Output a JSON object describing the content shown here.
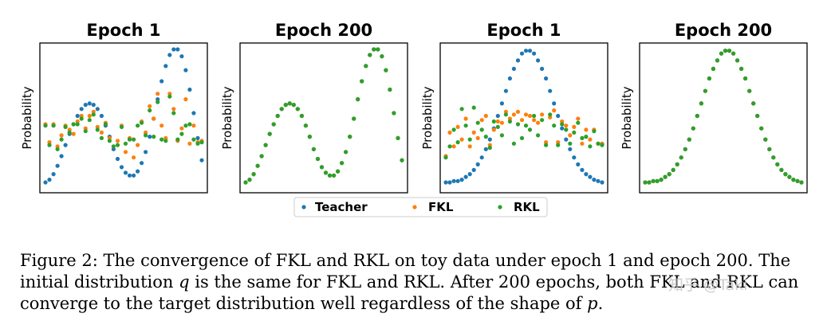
{
  "chart_data": [
    {
      "type": "scatter",
      "title": "Epoch 1",
      "ylabel": "Probability",
      "xlim": [
        0,
        39
      ],
      "ylim": [
        0.0,
        1.0
      ],
      "series": [
        {
          "name": "Teacher",
          "color": "#1f77b4",
          "x": [
            0,
            1,
            2,
            3,
            4,
            5,
            6,
            7,
            8,
            9,
            10,
            11,
            12,
            13,
            14,
            15,
            16,
            17,
            18,
            19,
            20,
            21,
            22,
            23,
            24,
            25,
            26,
            27,
            28,
            29,
            30,
            31,
            32,
            33,
            34,
            35,
            36,
            37,
            38,
            39
          ],
          "y": [
            0.04,
            0.06,
            0.1,
            0.16,
            0.23,
            0.31,
            0.39,
            0.46,
            0.52,
            0.57,
            0.6,
            0.61,
            0.6,
            0.57,
            0.52,
            0.45,
            0.37,
            0.28,
            0.21,
            0.15,
            0.11,
            0.09,
            0.09,
            0.12,
            0.18,
            0.26,
            0.37,
            0.5,
            0.64,
            0.77,
            0.88,
            0.96,
            1.0,
            1.0,
            0.95,
            0.85,
            0.71,
            0.54,
            0.36,
            0.2
          ]
        },
        {
          "name": "FKL",
          "color": "#ff7f0e",
          "x": [
            0,
            1,
            2,
            3,
            4,
            5,
            6,
            7,
            8,
            9,
            10,
            11,
            12,
            13,
            14,
            15,
            16,
            17,
            18,
            19,
            20,
            21,
            22,
            23,
            24,
            25,
            26,
            27,
            28,
            29,
            30,
            31,
            32,
            33,
            34,
            35,
            36,
            37,
            38,
            39
          ],
          "y": [
            0.46,
            0.33,
            0.46,
            0.3,
            0.38,
            0.45,
            0.42,
            0.39,
            0.48,
            0.52,
            0.43,
            0.52,
            0.55,
            0.44,
            0.4,
            0.47,
            0.36,
            0.3,
            0.34,
            0.45,
            0.26,
            0.36,
            0.22,
            0.31,
            0.48,
            0.4,
            0.59,
            0.5,
            0.68,
            0.45,
            0.36,
            0.68,
            0.57,
            0.34,
            0.43,
            0.64,
            0.32,
            0.45,
            0.33,
            0.34
          ]
        },
        {
          "name": "RKL",
          "color": "#2ca02c",
          "x": [
            0,
            1,
            2,
            3,
            4,
            5,
            6,
            7,
            8,
            9,
            10,
            11,
            12,
            13,
            14,
            15,
            16,
            17,
            18,
            19,
            20,
            21,
            22,
            23,
            24,
            25,
            26,
            27,
            28,
            29,
            30,
            31,
            32,
            33,
            34,
            35,
            36,
            37,
            38,
            39
          ],
          "y": [
            0.45,
            0.31,
            0.45,
            0.28,
            0.35,
            0.44,
            0.4,
            0.46,
            0.46,
            0.5,
            0.41,
            0.49,
            0.53,
            0.42,
            0.36,
            0.46,
            0.34,
            0.3,
            0.31,
            0.44,
            0.32,
            0.35,
            0.35,
            0.45,
            0.47,
            0.38,
            0.56,
            0.37,
            0.62,
            0.35,
            0.34,
            0.66,
            0.54,
            0.35,
            0.39,
            0.45,
            0.46,
            0.35,
            0.32,
            0.33
          ]
        }
      ]
    },
    {
      "type": "scatter",
      "title": "Epoch 200",
      "ylabel": "Probability",
      "xlim": [
        0,
        39
      ],
      "ylim": [
        0.0,
        1.0
      ],
      "series": [
        {
          "name": "Teacher",
          "color": "#1f77b4",
          "x": [
            0,
            1,
            2,
            3,
            4,
            5,
            6,
            7,
            8,
            9,
            10,
            11,
            12,
            13,
            14,
            15,
            16,
            17,
            18,
            19,
            20,
            21,
            22,
            23,
            24,
            25,
            26,
            27,
            28,
            29,
            30,
            31,
            32,
            33,
            34,
            35,
            36,
            37,
            38,
            39
          ],
          "y": [
            0.04,
            0.06,
            0.1,
            0.16,
            0.23,
            0.31,
            0.39,
            0.46,
            0.52,
            0.57,
            0.6,
            0.61,
            0.6,
            0.57,
            0.52,
            0.45,
            0.37,
            0.28,
            0.21,
            0.15,
            0.11,
            0.09,
            0.09,
            0.12,
            0.18,
            0.26,
            0.37,
            0.5,
            0.64,
            0.77,
            0.88,
            0.96,
            1.0,
            1.0,
            0.95,
            0.85,
            0.71,
            0.54,
            0.36,
            0.2
          ]
        },
        {
          "name": "FKL",
          "color": "#ff7f0e",
          "x": [
            0,
            1,
            2,
            3,
            4,
            5,
            6,
            7,
            8,
            9,
            10,
            11,
            12,
            13,
            14,
            15,
            16,
            17,
            18,
            19,
            20,
            21,
            22,
            23,
            24,
            25,
            26,
            27,
            28,
            29,
            30,
            31,
            32,
            33,
            34,
            35,
            36,
            37,
            38,
            39
          ],
          "y": [
            0.04,
            0.06,
            0.1,
            0.16,
            0.23,
            0.31,
            0.39,
            0.46,
            0.52,
            0.57,
            0.6,
            0.61,
            0.6,
            0.57,
            0.52,
            0.45,
            0.37,
            0.28,
            0.21,
            0.15,
            0.11,
            0.09,
            0.09,
            0.12,
            0.18,
            0.26,
            0.37,
            0.5,
            0.64,
            0.77,
            0.88,
            0.96,
            1.0,
            1.0,
            0.95,
            0.85,
            0.71,
            0.54,
            0.36,
            0.2
          ]
        },
        {
          "name": "RKL",
          "color": "#2ca02c",
          "x": [
            0,
            1,
            2,
            3,
            4,
            5,
            6,
            7,
            8,
            9,
            10,
            11,
            12,
            13,
            14,
            15,
            16,
            17,
            18,
            19,
            20,
            21,
            22,
            23,
            24,
            25,
            26,
            27,
            28,
            29,
            30,
            31,
            32,
            33,
            34,
            35,
            36,
            37,
            38,
            39
          ],
          "y": [
            0.04,
            0.06,
            0.1,
            0.16,
            0.23,
            0.31,
            0.39,
            0.46,
            0.52,
            0.57,
            0.6,
            0.61,
            0.6,
            0.57,
            0.52,
            0.45,
            0.37,
            0.28,
            0.21,
            0.15,
            0.11,
            0.09,
            0.09,
            0.12,
            0.18,
            0.26,
            0.37,
            0.5,
            0.64,
            0.77,
            0.88,
            0.96,
            1.0,
            1.0,
            0.95,
            0.85,
            0.71,
            0.54,
            0.36,
            0.2
          ]
        }
      ]
    },
    {
      "type": "scatter",
      "title": "Epoch 1",
      "ylabel": "Probability",
      "xlim": [
        0,
        39
      ],
      "ylim": [
        0.0,
        1.0
      ],
      "series": [
        {
          "name": "Teacher",
          "color": "#1f77b4",
          "x": [
            0,
            1,
            2,
            3,
            4,
            5,
            6,
            7,
            8,
            9,
            10,
            11,
            12,
            13,
            14,
            15,
            16,
            17,
            18,
            19,
            20,
            21,
            22,
            23,
            24,
            25,
            26,
            27,
            28,
            29,
            30,
            31,
            32,
            33,
            34,
            35,
            36,
            37,
            38,
            39
          ],
          "y": [
            0.04,
            0.04,
            0.05,
            0.05,
            0.06,
            0.08,
            0.1,
            0.13,
            0.17,
            0.22,
            0.28,
            0.35,
            0.43,
            0.52,
            0.61,
            0.7,
            0.79,
            0.86,
            0.92,
            0.97,
            0.99,
            0.99,
            0.97,
            0.92,
            0.86,
            0.79,
            0.7,
            0.61,
            0.52,
            0.43,
            0.35,
            0.28,
            0.22,
            0.17,
            0.13,
            0.1,
            0.08,
            0.06,
            0.05,
            0.04
          ]
        },
        {
          "name": "FKL",
          "color": "#ff7f0e",
          "x": [
            0,
            1,
            2,
            3,
            4,
            5,
            6,
            7,
            8,
            9,
            10,
            11,
            12,
            13,
            14,
            15,
            16,
            17,
            18,
            19,
            20,
            21,
            22,
            23,
            24,
            25,
            26,
            27,
            28,
            29,
            30,
            31,
            32,
            33,
            34,
            35,
            36,
            37,
            38,
            39
          ],
          "y": [
            0.23,
            0.4,
            0.3,
            0.44,
            0.35,
            0.5,
            0.3,
            0.4,
            0.36,
            0.49,
            0.52,
            0.31,
            0.42,
            0.48,
            0.47,
            0.55,
            0.5,
            0.53,
            0.55,
            0.49,
            0.53,
            0.52,
            0.49,
            0.47,
            0.53,
            0.33,
            0.51,
            0.56,
            0.33,
            0.48,
            0.45,
            0.38,
            0.44,
            0.5,
            0.32,
            0.42,
            0.35,
            0.42,
            0.32,
            0.32
          ]
        },
        {
          "name": "RKL",
          "color": "#2ca02c",
          "x": [
            0,
            1,
            2,
            3,
            4,
            5,
            6,
            7,
            8,
            9,
            10,
            11,
            12,
            13,
            14,
            15,
            16,
            17,
            18,
            19,
            20,
            21,
            22,
            23,
            24,
            25,
            26,
            27,
            28,
            29,
            30,
            31,
            32,
            33,
            34,
            35,
            36,
            37,
            38,
            39
          ],
          "y": [
            0.22,
            0.3,
            0.42,
            0.33,
            0.57,
            0.45,
            0.35,
            0.58,
            0.47,
            0.42,
            0.37,
            0.29,
            0.48,
            0.44,
            0.38,
            0.53,
            0.48,
            0.32,
            0.46,
            0.36,
            0.45,
            0.42,
            0.52,
            0.38,
            0.49,
            0.31,
            0.53,
            0.45,
            0.31,
            0.46,
            0.42,
            0.32,
            0.4,
            0.47,
            0.36,
            0.37,
            0.3,
            0.41,
            0.32,
            0.31
          ]
        }
      ]
    },
    {
      "type": "scatter",
      "title": "Epoch 200",
      "ylabel": "Probability",
      "xlim": [
        0,
        39
      ],
      "ylim": [
        0.0,
        1.0
      ],
      "series": [
        {
          "name": "Teacher",
          "color": "#1f77b4",
          "x": [
            0,
            1,
            2,
            3,
            4,
            5,
            6,
            7,
            8,
            9,
            10,
            11,
            12,
            13,
            14,
            15,
            16,
            17,
            18,
            19,
            20,
            21,
            22,
            23,
            24,
            25,
            26,
            27,
            28,
            29,
            30,
            31,
            32,
            33,
            34,
            35,
            36,
            37,
            38,
            39
          ],
          "y": [
            0.04,
            0.04,
            0.05,
            0.05,
            0.06,
            0.08,
            0.1,
            0.13,
            0.17,
            0.22,
            0.28,
            0.35,
            0.43,
            0.52,
            0.61,
            0.7,
            0.79,
            0.86,
            0.92,
            0.97,
            0.99,
            0.99,
            0.97,
            0.92,
            0.86,
            0.79,
            0.7,
            0.61,
            0.52,
            0.43,
            0.35,
            0.28,
            0.22,
            0.17,
            0.13,
            0.1,
            0.08,
            0.06,
            0.05,
            0.04
          ]
        },
        {
          "name": "FKL",
          "color": "#ff7f0e",
          "x": [
            0,
            1,
            2,
            3,
            4,
            5,
            6,
            7,
            8,
            9,
            10,
            11,
            12,
            13,
            14,
            15,
            16,
            17,
            18,
            19,
            20,
            21,
            22,
            23,
            24,
            25,
            26,
            27,
            28,
            29,
            30,
            31,
            32,
            33,
            34,
            35,
            36,
            37,
            38,
            39
          ],
          "y": [
            0.04,
            0.04,
            0.05,
            0.05,
            0.06,
            0.08,
            0.1,
            0.13,
            0.17,
            0.22,
            0.28,
            0.35,
            0.43,
            0.52,
            0.61,
            0.7,
            0.79,
            0.86,
            0.92,
            0.97,
            0.99,
            0.99,
            0.97,
            0.92,
            0.86,
            0.79,
            0.7,
            0.61,
            0.52,
            0.43,
            0.35,
            0.28,
            0.22,
            0.17,
            0.13,
            0.1,
            0.08,
            0.06,
            0.05,
            0.04
          ]
        },
        {
          "name": "RKL",
          "color": "#2ca02c",
          "x": [
            0,
            1,
            2,
            3,
            4,
            5,
            6,
            7,
            8,
            9,
            10,
            11,
            12,
            13,
            14,
            15,
            16,
            17,
            18,
            19,
            20,
            21,
            22,
            23,
            24,
            25,
            26,
            27,
            28,
            29,
            30,
            31,
            32,
            33,
            34,
            35,
            36,
            37,
            38,
            39
          ],
          "y": [
            0.04,
            0.04,
            0.05,
            0.05,
            0.06,
            0.08,
            0.1,
            0.13,
            0.17,
            0.22,
            0.28,
            0.35,
            0.43,
            0.52,
            0.61,
            0.7,
            0.79,
            0.86,
            0.92,
            0.97,
            0.99,
            0.99,
            0.97,
            0.92,
            0.86,
            0.79,
            0.7,
            0.61,
            0.52,
            0.43,
            0.35,
            0.28,
            0.22,
            0.17,
            0.13,
            0.1,
            0.08,
            0.06,
            0.05,
            0.04
          ]
        }
      ]
    }
  ],
  "legend": {
    "placement": "bottom-center",
    "entries": [
      {
        "label": "Teacher",
        "color": "#1f77b4"
      },
      {
        "label": "FKL",
        "color": "#ff7f0e"
      },
      {
        "label": "RKL",
        "color": "#2ca02c"
      }
    ]
  },
  "caption": {
    "line1": "Figure 2: The convergence of FKL and RKL on toy data under epoch 1 and epoch 200. The",
    "line2_pre": "initial distribution ",
    "line2_var": "q",
    "line2_post": " is the same for FKL and RKL. After 200 epochs, both FKL and RKL can",
    "line3_pre": "converge to the target distribution well regardless of the shape of ",
    "line3_var": "p",
    "line3_post": "."
  },
  "watermark": "知乎 @Taki"
}
